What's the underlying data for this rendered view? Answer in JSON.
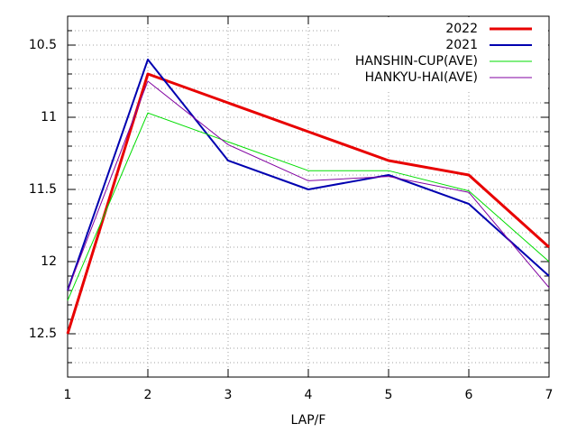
{
  "chart_data": {
    "type": "line",
    "x_label": "LAP/F",
    "x": [
      1,
      2,
      3,
      4,
      5,
      6,
      7
    ],
    "xlim": [
      1,
      7
    ],
    "xticks": [
      1,
      2,
      3,
      4,
      5,
      6,
      7
    ],
    "ylim": [
      12.8,
      10.3
    ],
    "yticks": [
      10.5,
      11,
      11.5,
      12,
      12.5
    ],
    "yminorticks": [
      10.4,
      10.5,
      10.6,
      10.7,
      10.8,
      10.9,
      11,
      11.1,
      11.2,
      11.3,
      11.4,
      11.5,
      11.6,
      11.7,
      11.8,
      11.9,
      12,
      12.1,
      12.2,
      12.3,
      12.4,
      12.5,
      12.6,
      12.7
    ],
    "grid": true,
    "legend": "top-right",
    "series": [
      {
        "name": "2022",
        "color": "#e80000",
        "width": 3,
        "values": [
          12.5,
          10.7,
          10.9,
          11.1,
          11.3,
          11.4,
          11.9
        ]
      },
      {
        "name": "2021",
        "color": "#0000b0",
        "width": 2,
        "values": [
          12.2,
          10.6,
          11.3,
          11.5,
          11.4,
          11.6,
          12.1
        ]
      },
      {
        "name": "HANSHIN-CUP(AVE)",
        "color": "#00dd00",
        "width": 1,
        "values": [
          12.27,
          10.97,
          11.17,
          11.37,
          11.37,
          11.51,
          12.0
        ]
      },
      {
        "name": "HANKYU-HAI(AVE)",
        "color": "#8000a0",
        "width": 1,
        "values": [
          12.2,
          10.75,
          11.19,
          11.44,
          11.41,
          11.52,
          12.18
        ]
      }
    ]
  }
}
